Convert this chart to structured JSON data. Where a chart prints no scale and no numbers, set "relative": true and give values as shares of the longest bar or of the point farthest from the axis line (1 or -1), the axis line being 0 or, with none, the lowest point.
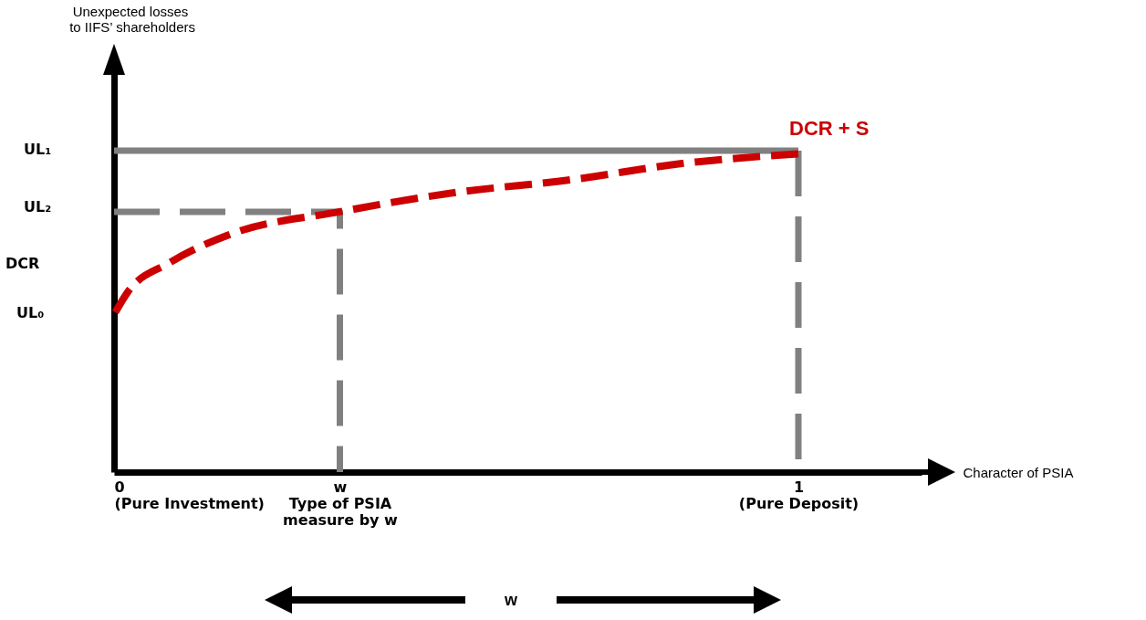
{
  "chart_data": {
    "type": "line",
    "relative": true,
    "xlabel": "Character of PSIA",
    "xlim": [
      0,
      1.18
    ],
    "xticks": [
      {
        "value": 0,
        "label": "0\n(Pure Investment)"
      },
      {
        "value": 0.33,
        "label": "w\nType of PSIA\nmeasure by w"
      },
      {
        "value": 1,
        "label": "1\n(Pure Deposit)"
      }
    ],
    "grid": false,
    "marker": "none",
    "series": [
      {
        "color": "#808080",
        "line_style": "dashed",
        "x": [
          0,
          0.33,
          0.33
        ],
        "values": [
          0.81,
          0.81,
          0
        ]
      },
      {
        "color": "#808080",
        "line_style": "solid",
        "x": [
          0,
          1
        ],
        "values": [
          1,
          1
        ]
      },
      {
        "color": "#808080",
        "line_style": "dashed",
        "x": [
          1,
          1
        ],
        "values": [
          1,
          0
        ]
      },
      {
        "name": "DCR + S",
        "color": "#cc0000",
        "line_style": "dashed",
        "x": [
          0,
          0.02,
          0.08,
          0.17,
          0.33,
          0.5,
          0.67,
          0.83,
          1
        ],
        "values": [
          0.49,
          0.56,
          0.65,
          0.74,
          0.81,
          0.87,
          0.91,
          0.96,
          0.99
        ]
      }
    ],
    "annotations": [
      "Unexpected losses\n to IIFS’ shareholders",
      "UL₁",
      "UL₂",
      "DCR",
      "UL₀",
      "w"
    ]
  }
}
